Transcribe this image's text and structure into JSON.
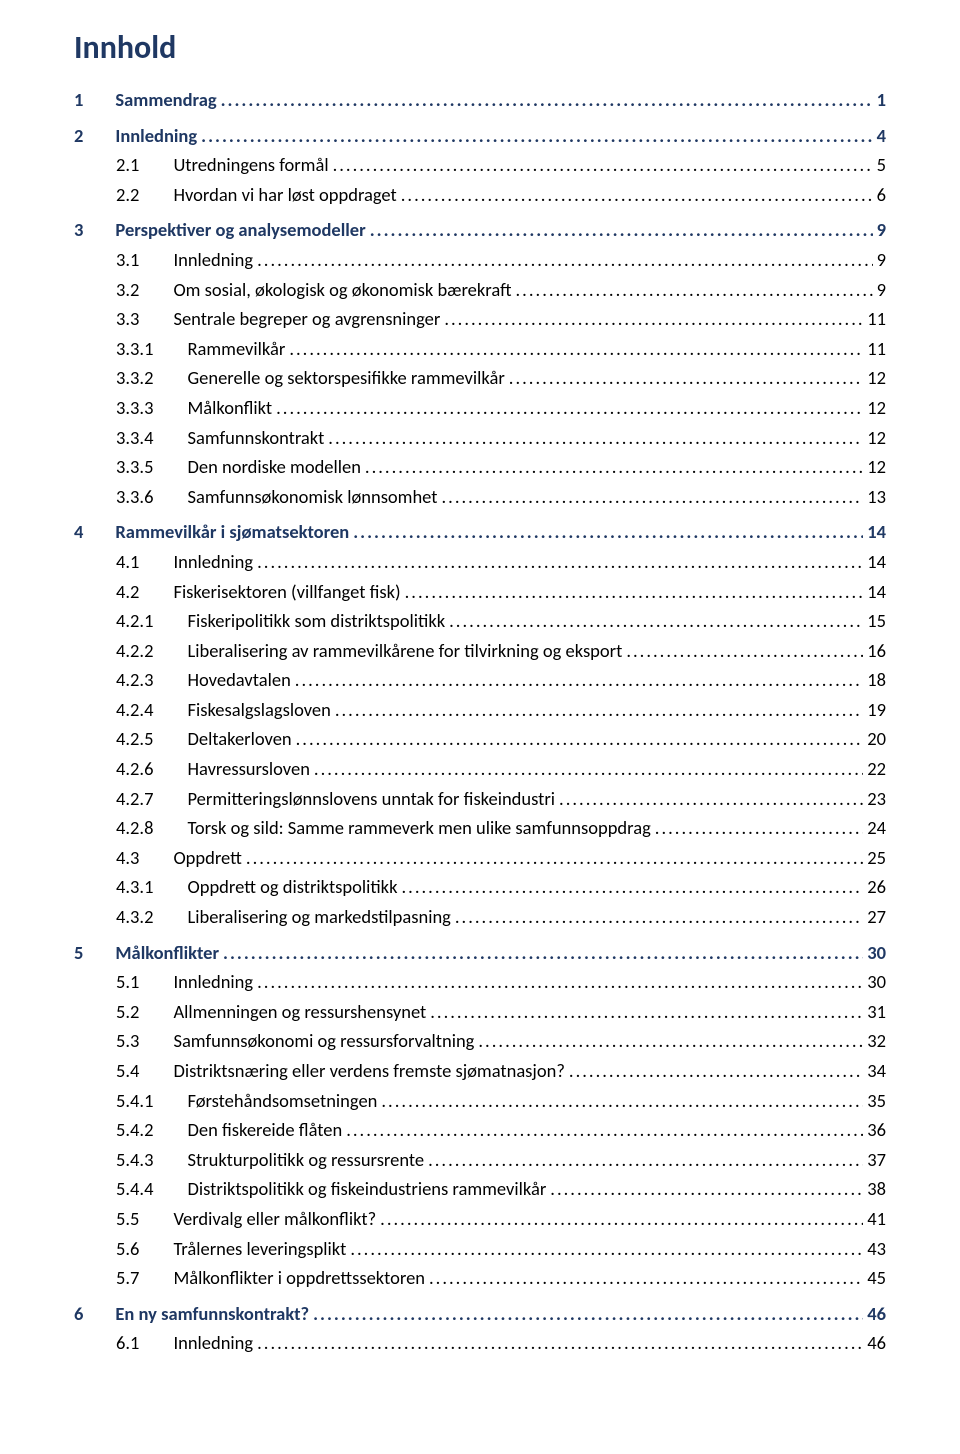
{
  "title": "Innhold",
  "colors": {
    "heading": "#1f3863",
    "text": "#000000",
    "background": "#ffffff"
  },
  "toc": [
    {
      "level": 1,
      "num": "1",
      "text": "Sammendrag",
      "page": "1"
    },
    {
      "level": 1,
      "num": "2",
      "text": "Innledning",
      "page": "4"
    },
    {
      "level": 2,
      "num": "2.1",
      "text": "Utredningens formål",
      "page": "5"
    },
    {
      "level": 2,
      "num": "2.2",
      "text": "Hvordan vi har løst oppdraget",
      "page": "6"
    },
    {
      "level": 1,
      "num": "3",
      "text": "Perspektiver og analysemodeller",
      "page": "9"
    },
    {
      "level": 2,
      "num": "3.1",
      "text": "Innledning",
      "page": "9"
    },
    {
      "level": 2,
      "num": "3.2",
      "text": "Om sosial, økologisk og økonomisk bærekraft",
      "page": "9"
    },
    {
      "level": 2,
      "num": "3.3",
      "text": "Sentrale begreper og avgrensninger",
      "page": "11"
    },
    {
      "level": 3,
      "num": "3.3.1",
      "text": "Rammevilkår",
      "page": "11"
    },
    {
      "level": 3,
      "num": "3.3.2",
      "text": "Generelle og sektorspesifikke rammevilkår",
      "page": "12"
    },
    {
      "level": 3,
      "num": "3.3.3",
      "text": "Målkonflikt",
      "page": "12"
    },
    {
      "level": 3,
      "num": "3.3.4",
      "text": "Samfunnskontrakt",
      "page": "12"
    },
    {
      "level": 3,
      "num": "3.3.5",
      "text": "Den nordiske modellen",
      "page": "12"
    },
    {
      "level": 3,
      "num": "3.3.6",
      "text": "Samfunnsøkonomisk lønnsomhet",
      "page": "13"
    },
    {
      "level": 1,
      "num": "4",
      "text": "Rammevilkår i sjømatsektoren",
      "page": "14"
    },
    {
      "level": 2,
      "num": "4.1",
      "text": "Innledning",
      "page": "14"
    },
    {
      "level": 2,
      "num": "4.2",
      "text": "Fiskerisektoren (villfanget fisk)",
      "page": "14"
    },
    {
      "level": 3,
      "num": "4.2.1",
      "text": "Fiskeripolitikk som distriktspolitikk",
      "page": "15"
    },
    {
      "level": 3,
      "num": "4.2.2",
      "text": "Liberalisering av rammevilkårene for tilvirkning og eksport",
      "page": "16"
    },
    {
      "level": 3,
      "num": "4.2.3",
      "text": "Hovedavtalen",
      "page": "18"
    },
    {
      "level": 3,
      "num": "4.2.4",
      "text": "Fiskesalgslagsloven",
      "page": "19"
    },
    {
      "level": 3,
      "num": "4.2.5",
      "text": "Deltakerloven",
      "page": "20"
    },
    {
      "level": 3,
      "num": "4.2.6",
      "text": "Havressursloven",
      "page": "22"
    },
    {
      "level": 3,
      "num": "4.2.7",
      "text": "Permitteringslønnslovens unntak for fiskeindustri",
      "page": "23"
    },
    {
      "level": 3,
      "num": "4.2.8",
      "text": "Torsk og sild: Samme rammeverk men ulike samfunnsoppdrag",
      "page": "24"
    },
    {
      "level": 2,
      "num": "4.3",
      "text": "Oppdrett",
      "page": "25"
    },
    {
      "level": 3,
      "num": "4.3.1",
      "text": "Oppdrett og distriktspolitikk",
      "page": "26"
    },
    {
      "level": 3,
      "num": "4.3.2",
      "text": "Liberalisering og markedstilpasning",
      "page": "27"
    },
    {
      "level": 1,
      "num": "5",
      "text": "Målkonflikter",
      "page": "30"
    },
    {
      "level": 2,
      "num": "5.1",
      "text": "Innledning",
      "page": "30"
    },
    {
      "level": 2,
      "num": "5.2",
      "text": "Allmenningen og ressurshensynet",
      "page": "31"
    },
    {
      "level": 2,
      "num": "5.3",
      "text": "Samfunnsøkonomi og ressursforvaltning",
      "page": "32"
    },
    {
      "level": 2,
      "num": "5.4",
      "text": "Distriktsnæring eller verdens fremste sjømatnasjon?",
      "page": "34"
    },
    {
      "level": 3,
      "num": "5.4.1",
      "text": "Førstehåndsomsetningen",
      "page": "35"
    },
    {
      "level": 3,
      "num": "5.4.2",
      "text": "Den fiskereide flåten",
      "page": "36"
    },
    {
      "level": 3,
      "num": "5.4.3",
      "text": "Strukturpolitikk og ressursrente",
      "page": "37"
    },
    {
      "level": 3,
      "num": "5.4.4",
      "text": "Distriktspolitikk og fiskeindustriens rammevilkår",
      "page": "38"
    },
    {
      "level": 2,
      "num": "5.5",
      "text": "Verdivalg eller målkonflikt?",
      "page": "41"
    },
    {
      "level": 2,
      "num": "5.6",
      "text": "Trålernes leveringsplikt",
      "page": "43"
    },
    {
      "level": 2,
      "num": "5.7",
      "text": "Målkonflikter i oppdrettssektoren",
      "page": "45"
    },
    {
      "level": 1,
      "num": "6",
      "text": "En ny samfunnskontrakt?",
      "page": "46"
    },
    {
      "level": 2,
      "num": "6.1",
      "text": "Innledning",
      "page": "46"
    }
  ]
}
